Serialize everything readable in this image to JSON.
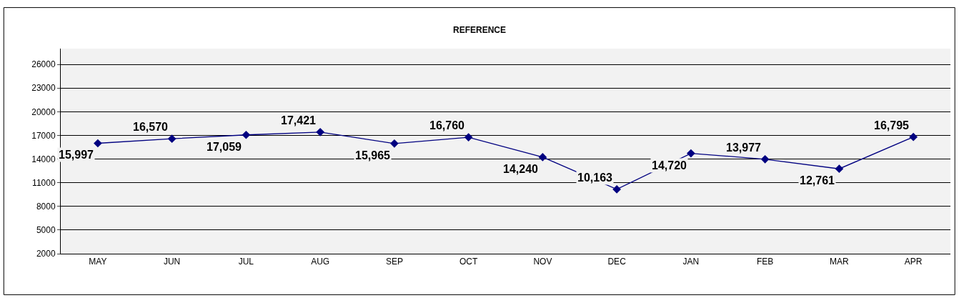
{
  "chart_data": {
    "type": "line",
    "title": "REFERENCE",
    "categories": [
      "MAY",
      "JUN",
      "JUL",
      "AUG",
      "SEP",
      "OCT",
      "NOV",
      "DEC",
      "JAN",
      "FEB",
      "MAR",
      "APR"
    ],
    "series": [
      {
        "color": "#000080",
        "values": [
          15997,
          16570,
          17059,
          17421,
          15965,
          16760,
          14240,
          10163,
          14720,
          13977,
          12761,
          16795
        ],
        "value_labels": [
          "15,997",
          "16,570",
          "17,059",
          "17,421",
          "15,965",
          "16,760",
          "14,240",
          "10,163",
          "14,720",
          "13,977",
          "12,761",
          "16,795"
        ]
      }
    ],
    "ylim": [
      2000,
      28000
    ],
    "yticks": [
      2000,
      5000,
      8000,
      11000,
      14000,
      17000,
      20000,
      23000,
      26000
    ],
    "grid": "y",
    "marker": "diamond",
    "line_style": "solid"
  }
}
